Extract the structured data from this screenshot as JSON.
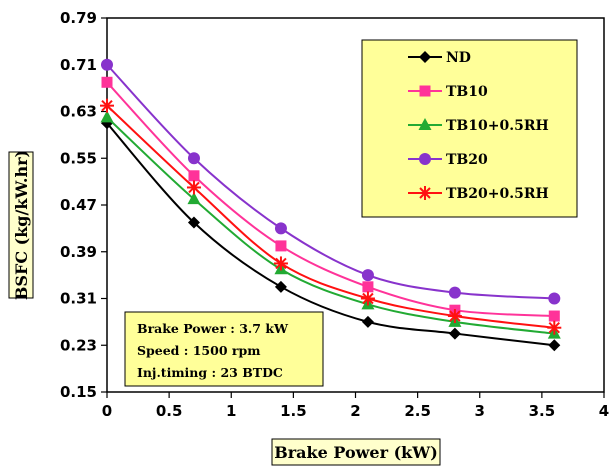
{
  "chart_data": {
    "type": "line",
    "xlabel": "Brake Power (kW)",
    "ylabel": "BSFC (kg/kW.hr)",
    "xlim": [
      0,
      4
    ],
    "ylim": [
      0.15,
      0.79
    ],
    "xticks": [
      "0",
      "0.5",
      "1",
      "1.5",
      "2",
      "2.5",
      "3",
      "3.5",
      "4"
    ],
    "yticks": [
      "0.15",
      "0.23",
      "0.31",
      "0.39",
      "0.47",
      "0.55",
      "0.63",
      "0.71",
      "0.79"
    ],
    "legend_position": "top-right",
    "grid": false,
    "x": [
      0,
      0.7,
      1.4,
      2.1,
      2.8,
      3.6
    ],
    "series": [
      {
        "name": "ND",
        "values": [
          0.61,
          0.44,
          0.33,
          0.27,
          0.25,
          0.23
        ],
        "color": "#000000",
        "marker": "diamond"
      },
      {
        "name": "TB10",
        "values": [
          0.68,
          0.52,
          0.4,
          0.33,
          0.29,
          0.28
        ],
        "color": "#ff3399",
        "marker": "square"
      },
      {
        "name": "TB10+0.5RH",
        "values": [
          0.62,
          0.48,
          0.36,
          0.3,
          0.27,
          0.25
        ],
        "color": "#22aa33",
        "marker": "triangle"
      },
      {
        "name": "TB20",
        "values": [
          0.71,
          0.55,
          0.43,
          0.35,
          0.32,
          0.31
        ],
        "color": "#8833cc",
        "marker": "circle"
      },
      {
        "name": "TB20+0.5RH",
        "values": [
          0.64,
          0.5,
          0.37,
          0.31,
          0.28,
          0.26
        ],
        "color": "#ff1111",
        "marker": "asterisk"
      }
    ],
    "annotation": [
      "Brake Power  : 3.7 kW",
      "Speed  : 1500 rpm",
      "Inj.timing  : 23 BTDC"
    ],
    "colors": {
      "legend_bg": "#ffff99",
      "label_box_bg": "#ffffcc",
      "axis": "#000000"
    }
  }
}
